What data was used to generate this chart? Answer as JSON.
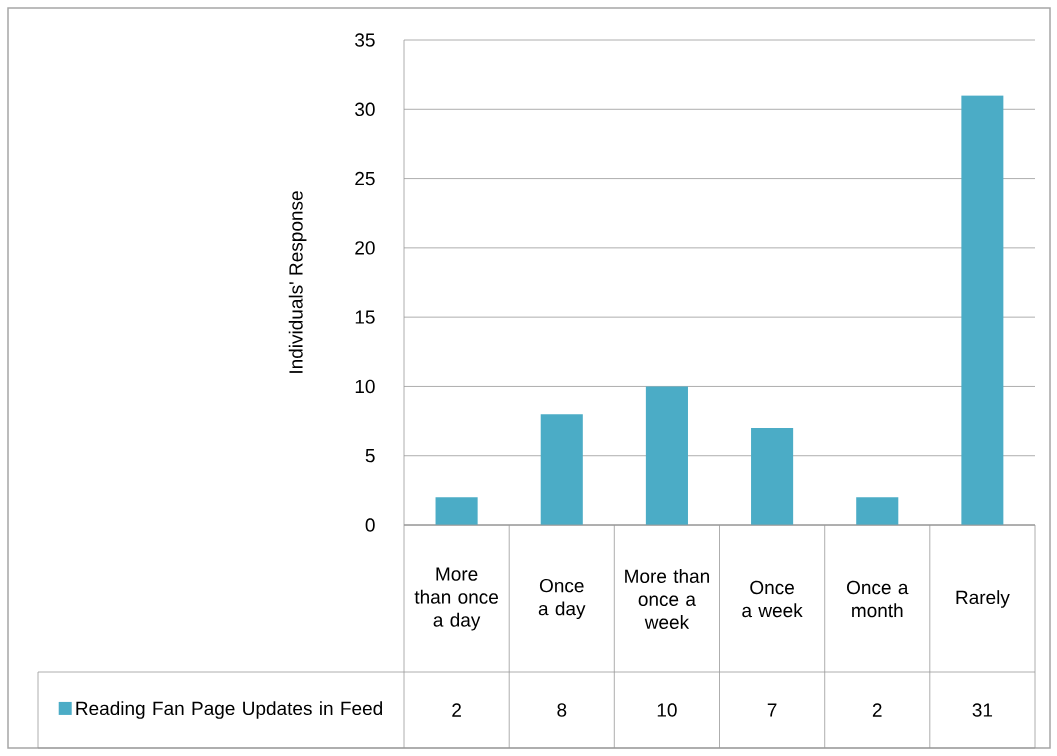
{
  "chart_data": {
    "type": "bar",
    "ylabel": "Individuals' Response",
    "categories": [
      "More than once a day",
      "Once a day",
      "More than once a week",
      "Once a week",
      "Once a month",
      "Rarely"
    ],
    "series": [
      {
        "name": "Reading Fan Page Updates in Feed",
        "color": "#4bacc6",
        "values": [
          2,
          8,
          10,
          7,
          2,
          31
        ]
      }
    ],
    "ylim": [
      0,
      35
    ],
    "yticks": [
      0,
      5,
      10,
      15,
      20,
      25,
      30,
      35
    ],
    "grid": "y",
    "legend": "bottom",
    "data_labels": true
  }
}
